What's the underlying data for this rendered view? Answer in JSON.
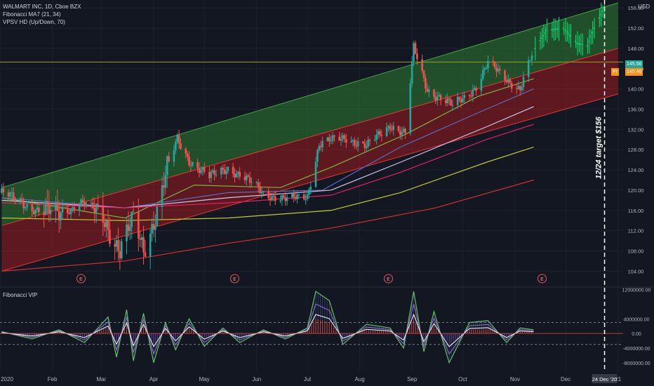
{
  "legend": {
    "symbol": "WALMART INC, 1D, Cboe BZX",
    "indicator1": "Fibonacci MA7 (21, 34)",
    "indicator2": "VPSV HD (Up/Down, 70)",
    "sub_title": "Fibonacci VIP"
  },
  "currency": "USD",
  "annotation": "12/24 target $156",
  "price_tags": {
    "last_price": "145.56",
    "orange_tag": "145.46",
    "orange_prefix": "Pr"
  },
  "earnings_markers": [
    "E",
    "E",
    "E",
    "E"
  ],
  "colors": {
    "background": "#131722",
    "up_candle": "#26a69a",
    "down_candle": "#ef5350",
    "upper_channel": "#2e7d32",
    "lower_channel": "#b71c1c",
    "projection": "#00e676",
    "oscillator": "#66bb6a"
  },
  "chart_data": {
    "type": "candlestick",
    "title": "WALMART INC, 1D, Cboe BZX",
    "y_ticks": [
      "156.00",
      "152.00",
      "148.00",
      "144.00",
      "140.00",
      "136.00",
      "132.00",
      "128.00",
      "124.00",
      "120.00",
      "116.00",
      "112.00",
      "108.00",
      "104.00"
    ],
    "ylim": [
      101,
      157
    ],
    "x_ticks": [
      "2020",
      "Feb",
      "Mar",
      "Apr",
      "May",
      "Jun",
      "Jul",
      "Aug",
      "Sep",
      "Oct",
      "Nov",
      "Dec",
      "21"
    ],
    "x_highlight": "24 Dec '20",
    "price_path": [
      {
        "x": "2020-01-02",
        "y": 119.5
      },
      {
        "x": "2020-01-20",
        "y": 116.5
      },
      {
        "x": "2020-02-03",
        "y": 115.0
      },
      {
        "x": "2020-02-18",
        "y": 117.5
      },
      {
        "x": "2020-03-02",
        "y": 115.0
      },
      {
        "x": "2020-03-12",
        "y": 108.0
      },
      {
        "x": "2020-03-20",
        "y": 114.0
      },
      {
        "x": "2020-03-26",
        "y": 108.5
      },
      {
        "x": "2020-04-03",
        "y": 116.0
      },
      {
        "x": "2020-04-09",
        "y": 124.0
      },
      {
        "x": "2020-04-15",
        "y": 130.0
      },
      {
        "x": "2020-04-22",
        "y": 126.0
      },
      {
        "x": "2020-05-04",
        "y": 122.5
      },
      {
        "x": "2020-05-15",
        "y": 124.5
      },
      {
        "x": "2020-05-22",
        "y": 123.0
      },
      {
        "x": "2020-06-05",
        "y": 119.5
      },
      {
        "x": "2020-06-19",
        "y": 118.0
      },
      {
        "x": "2020-07-01",
        "y": 119.0
      },
      {
        "x": "2020-07-08",
        "y": 129.0
      },
      {
        "x": "2020-07-24",
        "y": 130.5
      },
      {
        "x": "2020-08-05",
        "y": 128.5
      },
      {
        "x": "2020-08-19",
        "y": 133.0
      },
      {
        "x": "2020-08-28",
        "y": 131.0
      },
      {
        "x": "2020-09-02",
        "y": 148.0
      },
      {
        "x": "2020-09-10",
        "y": 140.0
      },
      {
        "x": "2020-09-25",
        "y": 136.5
      },
      {
        "x": "2020-10-09",
        "y": 140.5
      },
      {
        "x": "2020-10-16",
        "y": 145.0
      },
      {
        "x": "2020-10-27",
        "y": 142.0
      },
      {
        "x": "2020-11-04",
        "y": 140.0
      },
      {
        "x": "2020-11-11",
        "y": 146.5
      }
    ],
    "projection_path": [
      {
        "x": "2020-11-13",
        "y": 148.0
      },
      {
        "x": "2020-11-20",
        "y": 151.5
      },
      {
        "x": "2020-11-30",
        "y": 152.0
      },
      {
        "x": "2020-12-08",
        "y": 149.0
      },
      {
        "x": "2020-12-14",
        "y": 148.5
      },
      {
        "x": "2020-12-18",
        "y": 152.0
      },
      {
        "x": "2020-12-24",
        "y": 156.0
      }
    ],
    "upper_channel": {
      "start": {
        "x": "2020-01-02",
        "y": 120.5
      },
      "end": {
        "x": "2021-01-01",
        "y": 157.0
      }
    },
    "middle_line": {
      "start": {
        "x": "2020-01-02",
        "y": 113.0
      },
      "end": {
        "x": "2021-01-01",
        "y": 148.0
      }
    },
    "lower_channel": {
      "start": {
        "x": "2020-01-02",
        "y": 104.0
      },
      "end": {
        "x": "2021-01-01",
        "y": 139.0
      }
    },
    "horizontal_level": 145.3,
    "target_date": "2020-12-24",
    "moving_averages": [
      {
        "color": "#7cb342",
        "points": [
          {
            "x": "2020-01-02",
            "y": 118.5
          },
          {
            "x": "2020-03-15",
            "y": 114.5
          },
          {
            "x": "2020-04-25",
            "y": 121.0
          },
          {
            "x": "2020-06-15",
            "y": 120.5
          },
          {
            "x": "2020-07-15",
            "y": 124.5
          },
          {
            "x": "2020-08-28",
            "y": 131.0
          },
          {
            "x": "2020-10-10",
            "y": 138.5
          },
          {
            "x": "2020-11-12",
            "y": 142.0
          }
        ]
      },
      {
        "color": "#5c6bc0",
        "points": [
          {
            "x": "2020-01-02",
            "y": 118.5
          },
          {
            "x": "2020-03-15",
            "y": 116.5
          },
          {
            "x": "2020-05-15",
            "y": 119.5
          },
          {
            "x": "2020-07-10",
            "y": 120.0
          },
          {
            "x": "2020-08-25",
            "y": 128.5
          },
          {
            "x": "2020-10-15",
            "y": 136.0
          },
          {
            "x": "2020-11-12",
            "y": 140.0
          }
        ]
      },
      {
        "color": "#d1c4e9",
        "points": [
          {
            "x": "2020-01-02",
            "y": 118.0
          },
          {
            "x": "2020-03-15",
            "y": 116.5
          },
          {
            "x": "2020-05-15",
            "y": 118.5
          },
          {
            "x": "2020-07-15",
            "y": 120.0
          },
          {
            "x": "2020-08-25",
            "y": 125.5
          },
          {
            "x": "2020-10-15",
            "y": 132.5
          },
          {
            "x": "2020-11-12",
            "y": 136.5
          }
        ]
      },
      {
        "color": "#e91e63",
        "points": [
          {
            "x": "2020-01-02",
            "y": 117.5
          },
          {
            "x": "2020-03-15",
            "y": 116.5
          },
          {
            "x": "2020-05-15",
            "y": 117.5
          },
          {
            "x": "2020-07-15",
            "y": 119.0
          },
          {
            "x": "2020-08-25",
            "y": 123.5
          },
          {
            "x": "2020-10-15",
            "y": 130.0
          },
          {
            "x": "2020-11-12",
            "y": 133.0
          }
        ]
      },
      {
        "color": "#c0ca33",
        "points": [
          {
            "x": "2020-01-02",
            "y": 114.5
          },
          {
            "x": "2020-03-15",
            "y": 114.0
          },
          {
            "x": "2020-05-15",
            "y": 114.5
          },
          {
            "x": "2020-07-15",
            "y": 116.0
          },
          {
            "x": "2020-08-25",
            "y": 119.5
          },
          {
            "x": "2020-10-15",
            "y": 125.5
          },
          {
            "x": "2020-11-12",
            "y": 128.5
          }
        ]
      },
      {
        "color": "#d32f2f",
        "points": [
          {
            "x": "2020-01-02",
            "y": 104.0
          },
          {
            "x": "2020-03-15",
            "y": 106.0
          },
          {
            "x": "2020-05-15",
            "y": 109.5
          },
          {
            "x": "2020-07-15",
            "y": 112.5
          },
          {
            "x": "2020-09-15",
            "y": 116.5
          },
          {
            "x": "2020-11-12",
            "y": 122.0
          }
        ]
      }
    ],
    "oscillator": {
      "title": "Fibonacci VIP",
      "y_ticks": [
        "12000000.00",
        "4000000.00",
        "0.00",
        "-4000000.00",
        "-8000000.00"
      ],
      "ylim": [
        -9000000,
        12500000
      ],
      "reference_lines": [
        3000000,
        -3000000
      ],
      "envelope": [
        {
          "x": "2020-01-02",
          "y": 500000
        },
        {
          "x": "2020-01-20",
          "y": -1500000
        },
        {
          "x": "2020-02-05",
          "y": 1000000
        },
        {
          "x": "2020-02-20",
          "y": -2500000
        },
        {
          "x": "2020-03-05",
          "y": 4500000
        },
        {
          "x": "2020-03-10",
          "y": -6500000
        },
        {
          "x": "2020-03-16",
          "y": 6500000
        },
        {
          "x": "2020-03-20",
          "y": -7500000
        },
        {
          "x": "2020-03-26",
          "y": 5500000
        },
        {
          "x": "2020-04-01",
          "y": -8000000
        },
        {
          "x": "2020-04-08",
          "y": 3000000
        },
        {
          "x": "2020-04-14",
          "y": -4500000
        },
        {
          "x": "2020-04-22",
          "y": 4000000
        },
        {
          "x": "2020-05-01",
          "y": -3500000
        },
        {
          "x": "2020-05-12",
          "y": 1500000
        },
        {
          "x": "2020-05-22",
          "y": -2500000
        },
        {
          "x": "2020-06-05",
          "y": 1000000
        },
        {
          "x": "2020-06-18",
          "y": -1500000
        },
        {
          "x": "2020-07-01",
          "y": 1500000
        },
        {
          "x": "2020-07-06",
          "y": 11500000
        },
        {
          "x": "2020-07-14",
          "y": 9000000
        },
        {
          "x": "2020-07-22",
          "y": -3000000
        },
        {
          "x": "2020-08-05",
          "y": 2500000
        },
        {
          "x": "2020-08-19",
          "y": 1500000
        },
        {
          "x": "2020-08-27",
          "y": -4000000
        },
        {
          "x": "2020-09-02",
          "y": 11500000
        },
        {
          "x": "2020-09-08",
          "y": -5000000
        },
        {
          "x": "2020-09-14",
          "y": 6000000
        },
        {
          "x": "2020-09-23",
          "y": -8000000
        },
        {
          "x": "2020-10-05",
          "y": 3000000
        },
        {
          "x": "2020-10-16",
          "y": 3500000
        },
        {
          "x": "2020-10-27",
          "y": -2500000
        },
        {
          "x": "2020-11-04",
          "y": 1500000
        },
        {
          "x": "2020-11-12",
          "y": 1000000
        }
      ]
    },
    "price_series_note": ""
  }
}
